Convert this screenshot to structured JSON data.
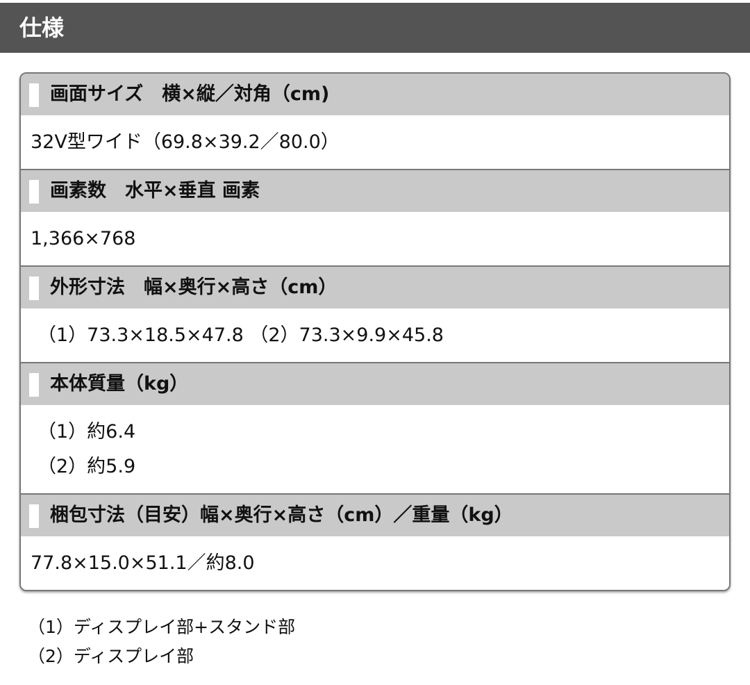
{
  "title": "仕様",
  "specs": [
    {
      "label": "画面サイズ　横×縦／対角（cm)",
      "values": [
        "32V型ワイド（69.8×39.2／80.0）"
      ]
    },
    {
      "label": "画素数　水平×垂直 画素",
      "values": [
        "1,366×768"
      ]
    },
    {
      "label": "外形寸法　幅×奥行×高さ（cm）",
      "values": [
        "（1）73.3×18.5×47.8 （2）73.3×9.9×45.8"
      ]
    },
    {
      "label": "本体質量（kg）",
      "values": [
        "（1）約6.4",
        "（2）約5.9"
      ]
    },
    {
      "label": "梱包寸法（目安）幅×奥行×高さ（cm）／重量（kg）",
      "values": [
        "77.8×15.0×51.1／約8.0"
      ]
    }
  ],
  "notes": [
    "（1）ディスプレイ部+スタンド部",
    "（2）ディスプレイ部"
  ]
}
